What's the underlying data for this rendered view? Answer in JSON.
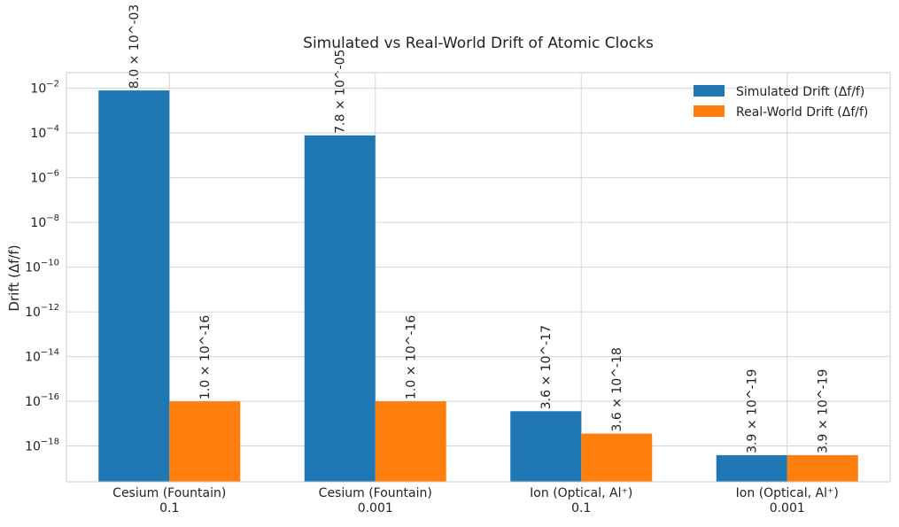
{
  "chart_data": {
    "type": "bar",
    "title": "Simulated vs Real-World Drift of Atomic Clocks",
    "xlabel": "",
    "ylabel": "Drift (Δf/f)",
    "yscale": "log",
    "ylim": [
      2.5e-20,
      0.05
    ],
    "yticks": [
      {
        "value": 1e-18,
        "base": "10",
        "exp": "−18"
      },
      {
        "value": 1e-16,
        "base": "10",
        "exp": "−16"
      },
      {
        "value": 1e-14,
        "base": "10",
        "exp": "−14"
      },
      {
        "value": 1e-12,
        "base": "10",
        "exp": "−12"
      },
      {
        "value": 1e-10,
        "base": "10",
        "exp": "−10"
      },
      {
        "value": 1e-08,
        "base": "10",
        "exp": "−8"
      },
      {
        "value": 1e-06,
        "base": "10",
        "exp": "−6"
      },
      {
        "value": 0.0001,
        "base": "10",
        "exp": "−4"
      },
      {
        "value": 0.01,
        "base": "10",
        "exp": "−2"
      }
    ],
    "categories": [
      [
        "Cesium (Fountain)",
        "0.1"
      ],
      [
        "Cesium (Fountain)",
        "0.001"
      ],
      [
        "Ion (Optical, Al⁺)",
        "0.1"
      ],
      [
        "Ion (Optical, Al⁺)",
        "0.001"
      ]
    ],
    "series": [
      {
        "name": "Simulated Drift (Δf/f)",
        "color": "#1f77b4",
        "values": [
          0.008,
          7.8e-05,
          3.6e-17,
          3.9e-19
        ],
        "labels": [
          "8.0 × 10^-03",
          "7.8 × 10^-05",
          "3.6 × 10^-17",
          "3.9 × 10^-19"
        ]
      },
      {
        "name": "Real-World Drift (Δf/f)",
        "color": "#ff7f0e",
        "values": [
          1e-16,
          1e-16,
          3.6e-18,
          3.9e-19
        ],
        "labels": [
          "1.0 × 10^-16",
          "1.0 × 10^-16",
          "3.6 × 10^-18",
          "3.9 × 10^-19"
        ]
      }
    ],
    "grid": true,
    "legend_position": "top-right"
  }
}
